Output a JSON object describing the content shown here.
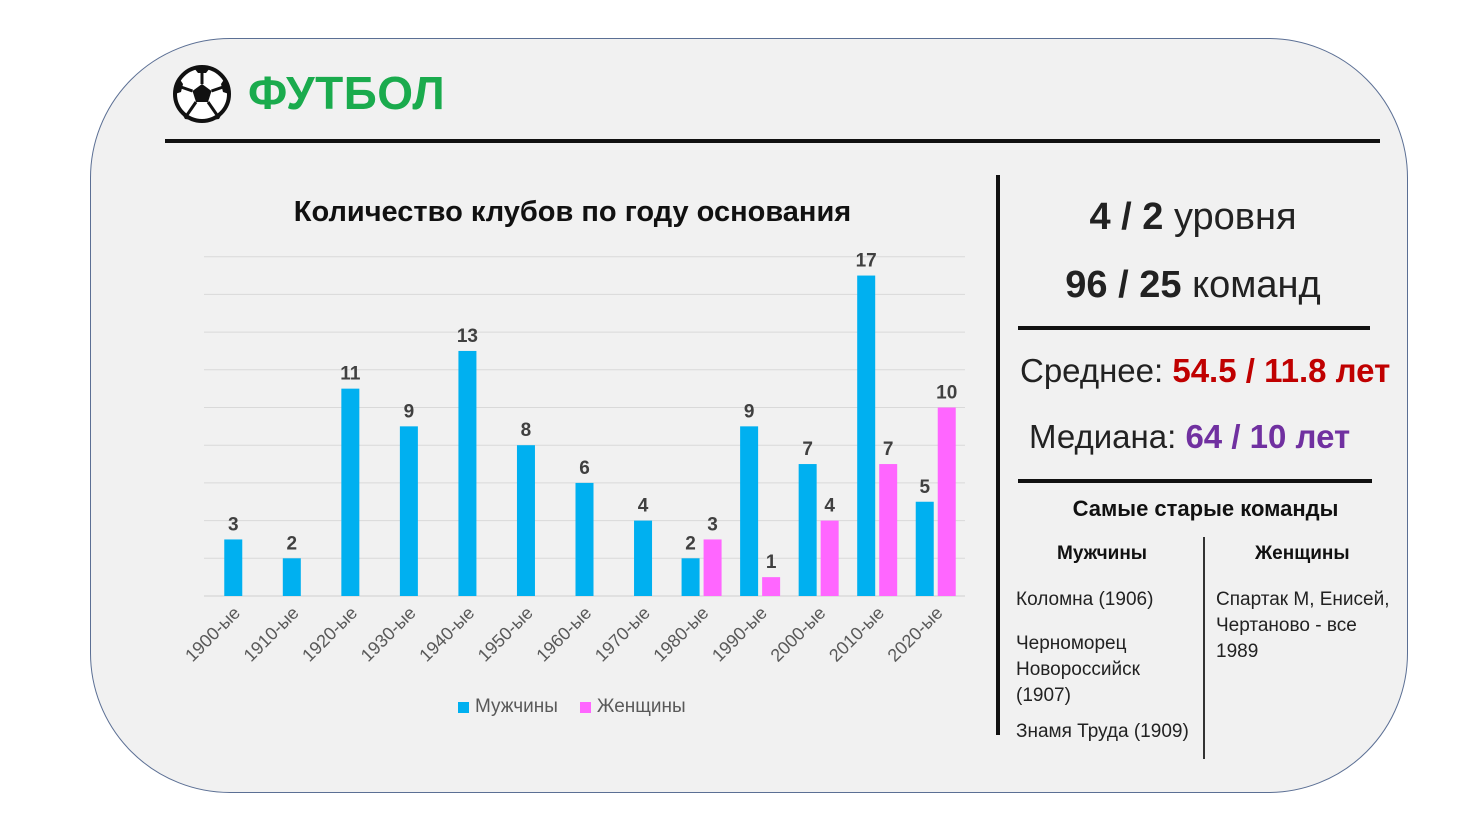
{
  "header": {
    "title": "ФУТБОЛ"
  },
  "chart_data": {
    "type": "bar",
    "title": "Количество клубов по году основания",
    "categories": [
      "1900-ые",
      "1910-ые",
      "1920-ые",
      "1930-ые",
      "1940-ые",
      "1950-ые",
      "1960-ые",
      "1970-ые",
      "1980-ые",
      "1990-ые",
      "2000-ые",
      "2010-ые",
      "2020-ые"
    ],
    "series": [
      {
        "name": "Мужчины",
        "values": [
          3,
          2,
          11,
          9,
          13,
          8,
          6,
          4,
          2,
          9,
          7,
          17,
          5
        ],
        "color": "#00b0f0"
      },
      {
        "name": "Женщины",
        "values": [
          null,
          null,
          null,
          null,
          null,
          null,
          null,
          null,
          3,
          1,
          4,
          7,
          10
        ],
        "color": "#ff66ff"
      }
    ],
    "ylim": [
      0,
      18
    ],
    "grid": true,
    "legend": "bottom"
  },
  "stats": {
    "levels_value": "4 / 2",
    "levels_label": "уровня",
    "teams_value": "96 / 25",
    "teams_label": "команд",
    "mean_label": "Среднее:",
    "mean_value": "54.5 / 11.8 лет",
    "median_label": "Медиана:",
    "median_value": "64 / 10 лет"
  },
  "oldest": {
    "title": "Самые старые команды",
    "men_header": "Мужчины",
    "women_header": "Женщины",
    "men": [
      "Коломна (1906)",
      "Черноморец Новороссийск (1907)",
      "Знамя Труда (1909)"
    ],
    "women": [
      "Спартак М, Енисей, Чертаново - все 1989"
    ]
  }
}
